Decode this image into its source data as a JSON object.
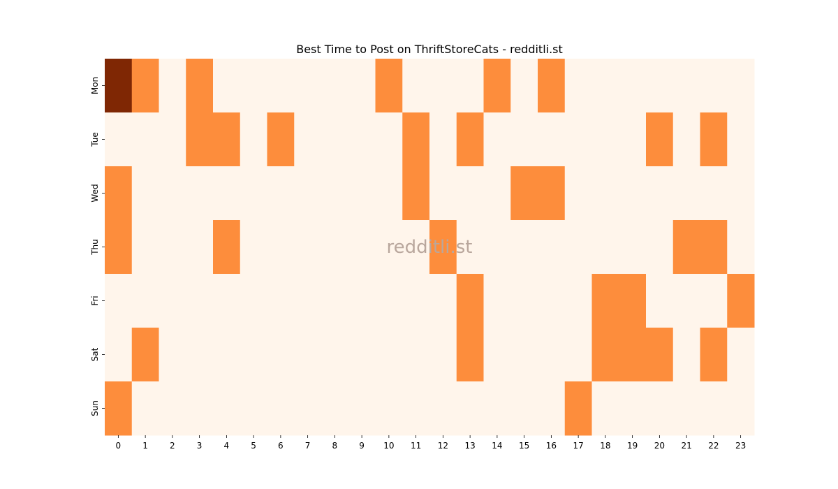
{
  "chart_data": {
    "type": "heatmap",
    "title": "Best Time to Post on ThriftStoreCats - redditli.st",
    "watermark": "redditli.st",
    "x_categories": [
      "0",
      "1",
      "2",
      "3",
      "4",
      "5",
      "6",
      "7",
      "8",
      "9",
      "10",
      "11",
      "12",
      "13",
      "14",
      "15",
      "16",
      "17",
      "18",
      "19",
      "20",
      "21",
      "22",
      "23"
    ],
    "y_categories": [
      "Mon",
      "Tue",
      "Wed",
      "Thu",
      "Fri",
      "Sat",
      "Sun"
    ],
    "values": [
      [
        2,
        1,
        0,
        1,
        0,
        0,
        0,
        0,
        0,
        0,
        1,
        0,
        0,
        0,
        1,
        0,
        1,
        0,
        0,
        0,
        0,
        0,
        0,
        0
      ],
      [
        0,
        0,
        0,
        1,
        1,
        0,
        1,
        0,
        0,
        0,
        0,
        1,
        0,
        1,
        0,
        0,
        0,
        0,
        0,
        0,
        1,
        0,
        1,
        0
      ],
      [
        1,
        0,
        0,
        0,
        0,
        0,
        0,
        0,
        0,
        0,
        0,
        1,
        0,
        0,
        0,
        1,
        1,
        0,
        0,
        0,
        0,
        0,
        0,
        0
      ],
      [
        1,
        0,
        0,
        0,
        1,
        0,
        0,
        0,
        0,
        0,
        0,
        0,
        1,
        0,
        0,
        0,
        0,
        0,
        0,
        0,
        0,
        1,
        1,
        0
      ],
      [
        0,
        0,
        0,
        0,
        0,
        0,
        0,
        0,
        0,
        0,
        0,
        0,
        0,
        1,
        0,
        0,
        0,
        0,
        1,
        1,
        0,
        0,
        0,
        1
      ],
      [
        0,
        1,
        0,
        0,
        0,
        0,
        0,
        0,
        0,
        0,
        0,
        0,
        0,
        1,
        0,
        0,
        0,
        0,
        1,
        1,
        1,
        0,
        1,
        0
      ],
      [
        1,
        0,
        0,
        0,
        0,
        0,
        0,
        0,
        0,
        0,
        0,
        0,
        0,
        0,
        0,
        0,
        0,
        1,
        0,
        0,
        0,
        0,
        0,
        0
      ]
    ],
    "colormap": "Oranges",
    "color_scale": {
      "0": "#fff5eb",
      "1": "#fd8d3c",
      "2": "#7f2704"
    },
    "colorbar": false,
    "grid": false
  }
}
